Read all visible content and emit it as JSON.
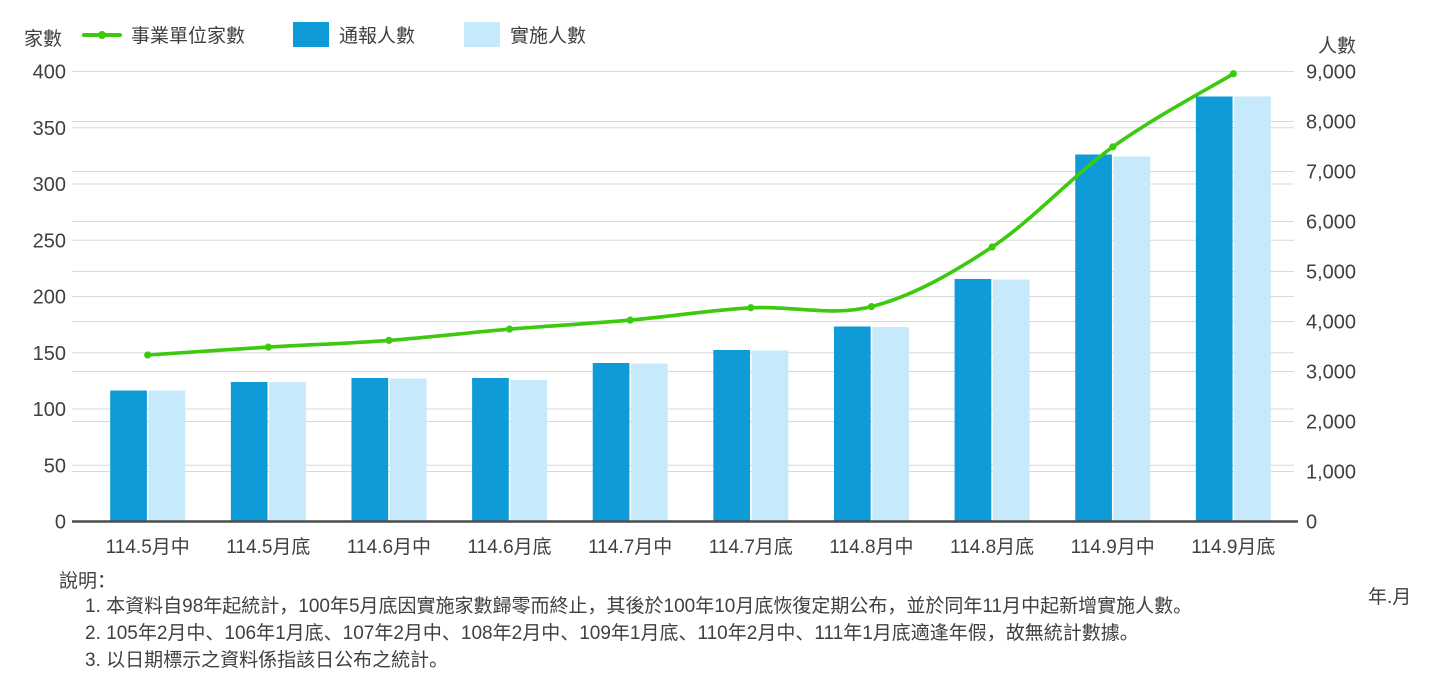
{
  "axis_titles": {
    "left": "家數",
    "right": "人數",
    "x": "年.月"
  },
  "chart_data": {
    "type": "bar+line combo",
    "categories": [
      "114.5月中",
      "114.5月底",
      "114.6月中",
      "114.6月底",
      "114.7月中",
      "114.7月底",
      "114.8月中",
      "114.8月底",
      "114.9月中",
      "114.9月底"
    ],
    "series": [
      {
        "name": "事業單位家數",
        "type": "line",
        "axis": "left",
        "color": "#3cc90e",
        "marker": "circle",
        "values": [
          148,
          155,
          161,
          171,
          179,
          190,
          191,
          244,
          333,
          398
        ]
      },
      {
        "name": "通報人數",
        "type": "bar",
        "axis": "right",
        "color": "#0e9bd8",
        "values": [
          2620,
          2790,
          2870,
          2870,
          3170,
          3430,
          3900,
          4850,
          7340,
          8500
        ]
      },
      {
        "name": "實施人數",
        "type": "bar",
        "axis": "right",
        "color": "#c6e9fb",
        "values": [
          2620,
          2790,
          2860,
          2830,
          3160,
          3420,
          3890,
          4840,
          7300,
          8500
        ]
      }
    ],
    "left_axis": {
      "title": "家數",
      "min": 0,
      "max": 400,
      "step": 50
    },
    "right_axis": {
      "title": "人數",
      "min": 0,
      "max": 9000,
      "step": 1000
    },
    "x_axis_title": "年.月",
    "grid": true,
    "legend_position": "top-left"
  },
  "colors": {
    "grid": "#d9d9d9",
    "axis_line": "#4d4d4d",
    "tick_text": "#404040"
  },
  "notes": {
    "heading": "說明：",
    "items": [
      "1. 本資料自98年起統計，100年5月底因實施家數歸零而終止，其後於100年10月底恢復定期公布，並於同年11月中起新增實施人數。",
      "2. 105年2月中、106年1月底、107年2月中、108年2月中、109年1月底、110年2月中、111年1月底適逢年假，故無統計數據。",
      "3. 以日期標示之資料係指該日公布之統計。"
    ]
  }
}
